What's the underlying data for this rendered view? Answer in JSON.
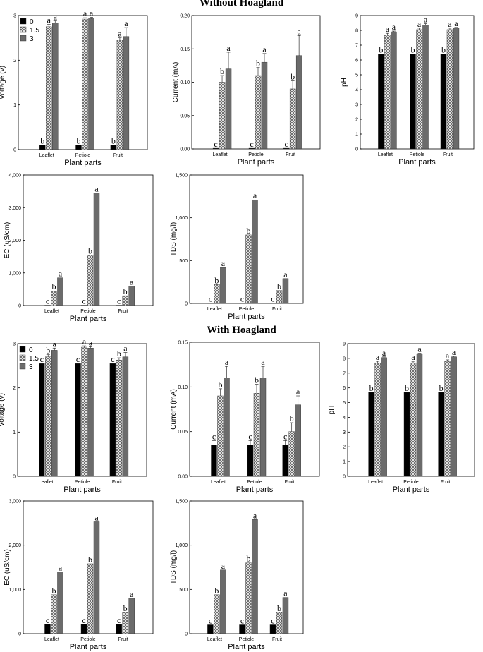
{
  "figure": {
    "section_titles": [
      "Without Hoagland",
      "With Hoagland"
    ],
    "legend": [
      {
        "label": "0",
        "pattern": "solid-black"
      },
      {
        "label": "1.5",
        "pattern": "cross-hatch"
      },
      {
        "label": "3",
        "pattern": "solid-gray"
      }
    ],
    "colors": {
      "black": "#000000",
      "gray": "#6b6b6b",
      "hatch": "#555555",
      "axis": "#000000"
    }
  },
  "chart_data": [
    {
      "id": "voltage-without",
      "section": "Without Hoagland",
      "type": "bar",
      "title": "",
      "xlabel": "Plant parts",
      "ylabel": "Voltage (v)",
      "categories": [
        "Leaflet",
        "Petiole",
        "Fruit"
      ],
      "ylim": [
        0,
        3
      ],
      "yticks": [
        0,
        1,
        2,
        3
      ],
      "ytick_labels": [
        "0",
        "1",
        "2",
        "3"
      ],
      "legend_shown": true,
      "series": [
        {
          "name": "0",
          "values": [
            0.1,
            0.1,
            0.1
          ],
          "errors": [
            0,
            0,
            0
          ],
          "letters": [
            "b",
            "b",
            "b"
          ]
        },
        {
          "name": "1.5",
          "values": [
            2.75,
            2.92,
            2.45
          ],
          "errors": [
            0.05,
            0.03,
            0.05
          ],
          "letters": [
            "a",
            "a",
            "a"
          ]
        },
        {
          "name": "3",
          "values": [
            2.83,
            2.93,
            2.53
          ],
          "errors": [
            0.05,
            0.03,
            0.2
          ],
          "letters": [
            "a",
            "a",
            "a"
          ]
        }
      ]
    },
    {
      "id": "current-without",
      "section": "Without Hoagland",
      "type": "bar",
      "title": "",
      "xlabel": "Plant parts",
      "ylabel": "Current (mA)",
      "categories": [
        "Leaflet",
        "Petiole",
        "Fruit"
      ],
      "ylim": [
        0,
        0.2
      ],
      "yticks": [
        0,
        0.05,
        0.1,
        0.15,
        0.2
      ],
      "ytick_labels": [
        "0.00",
        "0.05",
        "0.10",
        "0.15",
        "0.20"
      ],
      "legend_shown": false,
      "series": [
        {
          "name": "0",
          "values": [
            0.001,
            0.001,
            0.001
          ],
          "errors": [
            0,
            0,
            0
          ],
          "letters": [
            "c",
            "c",
            "c"
          ]
        },
        {
          "name": "1.5",
          "values": [
            0.1,
            0.11,
            0.09
          ],
          "errors": [
            0.01,
            0.012,
            0.012
          ],
          "letters": [
            "b",
            "b",
            "b"
          ]
        },
        {
          "name": "3",
          "values": [
            0.12,
            0.13,
            0.14
          ],
          "errors": [
            0.025,
            0.013,
            0.03
          ],
          "letters": [
            "a",
            "a",
            "a"
          ]
        }
      ]
    },
    {
      "id": "ph-without",
      "section": "Without Hoagland",
      "type": "bar",
      "title": "",
      "xlabel": "Plant parts",
      "ylabel": "pH",
      "categories": [
        "Leaflet",
        "Petiole",
        "Fruit"
      ],
      "ylim": [
        0,
        9
      ],
      "yticks": [
        0,
        1,
        2,
        3,
        4,
        5,
        6,
        7,
        8,
        9
      ],
      "ytick_labels": [
        "0",
        "1",
        "2",
        "3",
        "4",
        "5",
        "6",
        "7",
        "8",
        "9"
      ],
      "legend_shown": false,
      "series": [
        {
          "name": "0",
          "values": [
            6.4,
            6.4,
            6.4
          ],
          "errors": [
            0,
            0,
            0
          ],
          "letters": [
            "b",
            "b",
            "b"
          ]
        },
        {
          "name": "1.5",
          "values": [
            7.7,
            8.05,
            8.05
          ],
          "errors": [
            0.1,
            0.1,
            0.1
          ],
          "letters": [
            "a",
            "a",
            "a"
          ]
        },
        {
          "name": "3",
          "values": [
            7.9,
            8.35,
            8.15
          ],
          "errors": [
            0.05,
            0.1,
            0.05
          ],
          "letters": [
            "a",
            "a",
            "a"
          ]
        }
      ]
    },
    {
      "id": "ec-without",
      "section": "Without Hoagland",
      "type": "bar",
      "title": "",
      "xlabel": "Plant parts",
      "ylabel": "EC (uS/cm)",
      "categories": [
        "Leaflet",
        "Petiole",
        "Fruit"
      ],
      "ylim": [
        0,
        4000
      ],
      "yticks": [
        0,
        1000,
        2000,
        3000,
        4000
      ],
      "ytick_labels": [
        "0",
        "1,000",
        "2,000",
        "3,000",
        "4,000"
      ],
      "legend_shown": false,
      "series": [
        {
          "name": "0",
          "values": [
            10,
            10,
            10
          ],
          "errors": [
            0,
            0,
            0
          ],
          "letters": [
            "c",
            "c",
            "c"
          ]
        },
        {
          "name": "1.5",
          "values": [
            450,
            1550,
            300
          ],
          "errors": [
            0,
            0,
            0
          ],
          "letters": [
            "b",
            "b",
            "b"
          ]
        },
        {
          "name": "3",
          "values": [
            850,
            3450,
            600
          ],
          "errors": [
            0,
            0,
            0
          ],
          "letters": [
            "a",
            "a",
            "a"
          ]
        }
      ]
    },
    {
      "id": "tds-without",
      "section": "Without Hoagland",
      "type": "bar",
      "title": "",
      "xlabel": "Plant parts",
      "ylabel": "TDS (mg/l)",
      "categories": [
        "Leaflet",
        "Petiole",
        "Fruit"
      ],
      "ylim": [
        0,
        1500
      ],
      "yticks": [
        0,
        500,
        1000,
        1500
      ],
      "ytick_labels": [
        "0",
        "500",
        "1,000",
        "1,500"
      ],
      "legend_shown": false,
      "series": [
        {
          "name": "0",
          "values": [
            5,
            5,
            5
          ],
          "errors": [
            0,
            0,
            0
          ],
          "letters": [
            "c",
            "c",
            "c"
          ]
        },
        {
          "name": "1.5",
          "values": [
            220,
            800,
            150
          ],
          "errors": [
            0,
            0,
            0
          ],
          "letters": [
            "b",
            "b",
            "b"
          ]
        },
        {
          "name": "3",
          "values": [
            420,
            1210,
            290
          ],
          "errors": [
            0,
            0,
            0
          ],
          "letters": [
            "a",
            "a",
            "a"
          ]
        }
      ]
    },
    {
      "id": "voltage-with",
      "section": "With Hoagland",
      "type": "bar",
      "title": "",
      "xlabel": "Plant parts",
      "ylabel": "Voltage (v)",
      "categories": [
        "Leaflet",
        "Petiole",
        "Fruit"
      ],
      "ylim": [
        0,
        3
      ],
      "yticks": [
        0,
        1,
        2,
        3
      ],
      "ytick_labels": [
        "0",
        "1",
        "2",
        "3"
      ],
      "legend_shown": true,
      "series": [
        {
          "name": "0",
          "values": [
            2.55,
            2.55,
            2.55
          ],
          "errors": [
            0,
            0,
            0
          ],
          "letters": [
            "c",
            "c",
            "c"
          ]
        },
        {
          "name": "1.5",
          "values": [
            2.7,
            2.92,
            2.63
          ],
          "errors": [
            0.05,
            0.03,
            0.05
          ],
          "letters": [
            "b",
            "a",
            "b"
          ]
        },
        {
          "name": "3",
          "values": [
            2.85,
            2.9,
            2.7
          ],
          "errors": [
            0.05,
            0.03,
            0.1
          ],
          "letters": [
            "a",
            "a",
            "a"
          ]
        }
      ]
    },
    {
      "id": "current-with",
      "section": "With Hoagland",
      "type": "bar",
      "title": "",
      "xlabel": "Plant parts",
      "ylabel": "Current (mA)",
      "categories": [
        "Leaflet",
        "Petiole",
        "Fruit"
      ],
      "ylim": [
        0,
        0.15
      ],
      "yticks": [
        0,
        0.05,
        0.1,
        0.15
      ],
      "ytick_labels": [
        "0.00",
        "0.05",
        "0.10",
        "0.15"
      ],
      "legend_shown": false,
      "series": [
        {
          "name": "0",
          "values": [
            0.035,
            0.035,
            0.035
          ],
          "errors": [
            0.005,
            0.005,
            0.005
          ],
          "letters": [
            "c",
            "c",
            "c"
          ]
        },
        {
          "name": "1.5",
          "values": [
            0.09,
            0.093,
            0.05
          ],
          "errors": [
            0.008,
            0.01,
            0.01
          ],
          "letters": [
            "b",
            "b",
            "b"
          ]
        },
        {
          "name": "3",
          "values": [
            0.11,
            0.11,
            0.08
          ],
          "errors": [
            0.013,
            0.013,
            0.01
          ],
          "letters": [
            "a",
            "a",
            "a"
          ]
        }
      ]
    },
    {
      "id": "ph-with",
      "section": "With Hoagland",
      "type": "bar",
      "title": "",
      "xlabel": "Plant parts",
      "ylabel": "pH",
      "categories": [
        "Leaflet",
        "Petiole",
        "Fruit"
      ],
      "ylim": [
        0,
        9
      ],
      "yticks": [
        0,
        1,
        2,
        3,
        4,
        5,
        6,
        7,
        8,
        9
      ],
      "ytick_labels": [
        "0",
        "1",
        "2",
        "3",
        "4",
        "5",
        "6",
        "7",
        "8",
        "9"
      ],
      "legend_shown": false,
      "series": [
        {
          "name": "0",
          "values": [
            5.7,
            5.7,
            5.7
          ],
          "errors": [
            0,
            0,
            0
          ],
          "letters": [
            "b",
            "b",
            "b"
          ]
        },
        {
          "name": "1.5",
          "values": [
            7.7,
            7.7,
            7.8
          ],
          "errors": [
            0.1,
            0.1,
            0.1
          ],
          "letters": [
            "a",
            "a",
            "a"
          ]
        },
        {
          "name": "3",
          "values": [
            8.05,
            8.3,
            8.1
          ],
          "errors": [
            0.05,
            0.05,
            0.05
          ],
          "letters": [
            "a",
            "a",
            "a"
          ]
        }
      ]
    },
    {
      "id": "ec-with",
      "section": "With Hoagland",
      "type": "bar",
      "title": "",
      "xlabel": "Plant parts",
      "ylabel": "EC (uS/cm)",
      "categories": [
        "Leaflet",
        "Petiole",
        "Fruit"
      ],
      "ylim": [
        0,
        3000
      ],
      "yticks": [
        0,
        1000,
        2000,
        3000
      ],
      "ytick_labels": [
        "0",
        "1,000",
        "2,000",
        "3,000"
      ],
      "legend_shown": false,
      "series": [
        {
          "name": "0",
          "values": [
            210,
            210,
            210
          ],
          "errors": [
            0,
            0,
            0
          ],
          "letters": [
            "c",
            "c",
            "c"
          ]
        },
        {
          "name": "1.5",
          "values": [
            880,
            1580,
            480
          ],
          "errors": [
            0,
            0,
            0
          ],
          "letters": [
            "b",
            "b",
            "b"
          ]
        },
        {
          "name": "3",
          "values": [
            1400,
            2530,
            800
          ],
          "errors": [
            0,
            0,
            0
          ],
          "letters": [
            "a",
            "a",
            "a"
          ]
        }
      ]
    },
    {
      "id": "tds-with",
      "section": "With Hoagland",
      "type": "bar",
      "title": "",
      "xlabel": "Plant parts",
      "ylabel": "TDS (mg/l)",
      "categories": [
        "Leaflet",
        "Petiole",
        "Fruit"
      ],
      "ylim": [
        0,
        1500
      ],
      "yticks": [
        0,
        500,
        1000,
        1500
      ],
      "ytick_labels": [
        "0",
        "500",
        "1,000",
        "1,500"
      ],
      "legend_shown": false,
      "series": [
        {
          "name": "0",
          "values": [
            100,
            100,
            100
          ],
          "errors": [
            0,
            0,
            0
          ],
          "letters": [
            "c",
            "c",
            "c"
          ]
        },
        {
          "name": "1.5",
          "values": [
            440,
            800,
            240
          ],
          "errors": [
            0,
            0,
            0
          ],
          "letters": [
            "b",
            "b",
            "b"
          ]
        },
        {
          "name": "3",
          "values": [
            720,
            1290,
            410
          ],
          "errors": [
            0,
            0,
            0
          ],
          "letters": [
            "a",
            "a",
            "a"
          ]
        }
      ]
    }
  ]
}
